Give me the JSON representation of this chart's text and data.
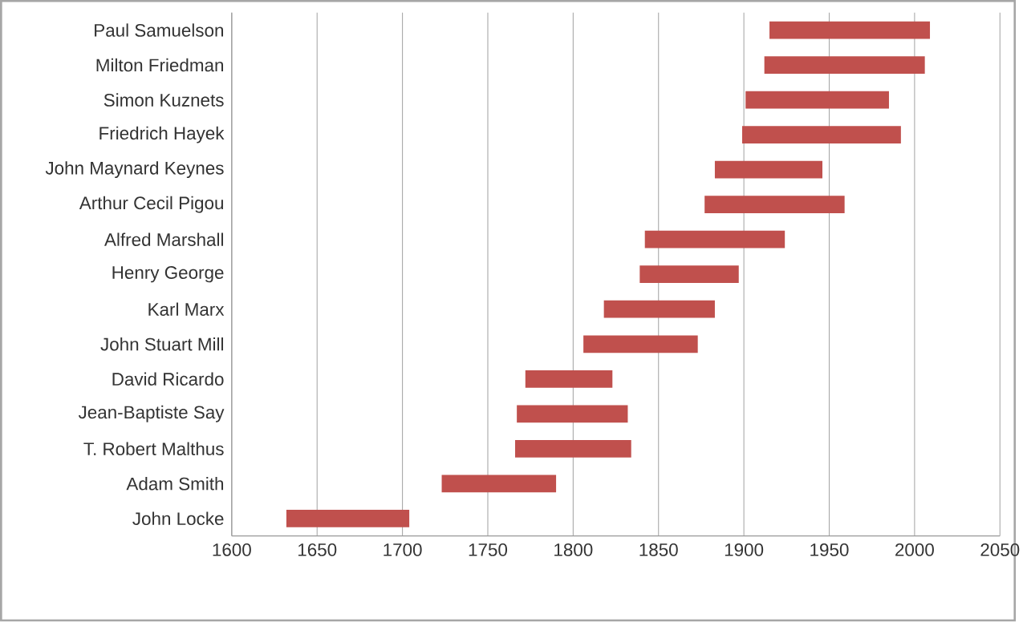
{
  "chart_data": {
    "type": "bar",
    "orientation": "horizontal",
    "color": "#c0504d",
    "categories": [
      "Paul Samuelson",
      "Milton Friedman",
      "Simon Kuznets",
      "Friedrich Hayek",
      "John Maynard Keynes",
      "Arthur Cecil Pigou",
      "Alfred Marshall",
      "Henry George",
      "Karl Marx",
      "John Stuart Mill",
      "David Ricardo",
      "Jean-Baptiste Say",
      "T. Robert Malthus",
      "Adam Smith",
      "John Locke"
    ],
    "base": [
      1915,
      1912,
      1901,
      1899,
      1883,
      1877,
      1842,
      1839,
      1818,
      1806,
      1772,
      1767,
      1766,
      1723,
      1632
    ],
    "values": [
      94,
      94,
      84,
      93,
      63,
      82,
      82,
      58,
      65,
      67,
      51,
      65,
      68,
      67,
      72
    ],
    "xlim": [
      1600,
      2050
    ],
    "xticks": [
      1600,
      1650,
      1700,
      1750,
      1800,
      1850,
      1900,
      1950,
      2000,
      2050
    ],
    "grid": "x"
  }
}
